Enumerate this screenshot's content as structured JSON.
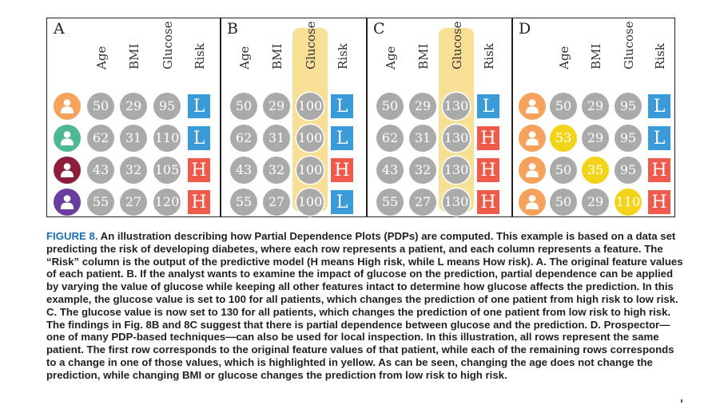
{
  "colors": {
    "gray_circle": "#aaaaaa",
    "yellow_highlight": "#f3d41c",
    "glucose_column_highlight": "#f8df96",
    "risk_low": "#3b9bd8",
    "risk_high": "#ef5a4a",
    "caption_label": "#1a6fb4"
  },
  "panels": [
    {
      "letter": "A",
      "headers": [
        "Age",
        "BMI",
        "Glucose",
        "Risk"
      ],
      "highlight_glucose_column": false,
      "rows": [
        {
          "avatar_color": "#f5a35c",
          "values": [
            "50",
            "29",
            "95"
          ],
          "risk": "L",
          "highlight": [
            false,
            false,
            false
          ]
        },
        {
          "avatar_color": "#4db896",
          "values": [
            "62",
            "31",
            "110"
          ],
          "risk": "L",
          "highlight": [
            false,
            false,
            false
          ]
        },
        {
          "avatar_color": "#8c1d3b",
          "values": [
            "43",
            "32",
            "105"
          ],
          "risk": "H",
          "highlight": [
            false,
            false,
            false
          ]
        },
        {
          "avatar_color": "#6a3e9e",
          "values": [
            "55",
            "27",
            "120"
          ],
          "risk": "H",
          "highlight": [
            false,
            false,
            false
          ]
        }
      ]
    },
    {
      "letter": "B",
      "headers": [
        "Age",
        "BMI",
        "Glucose",
        "Risk"
      ],
      "highlight_glucose_column": true,
      "rows": [
        {
          "values": [
            "50",
            "29",
            "100"
          ],
          "risk": "L",
          "highlight": [
            false,
            false,
            false
          ]
        },
        {
          "values": [
            "62",
            "31",
            "100"
          ],
          "risk": "L",
          "highlight": [
            false,
            false,
            false
          ]
        },
        {
          "values": [
            "43",
            "32",
            "100"
          ],
          "risk": "H",
          "highlight": [
            false,
            false,
            false
          ]
        },
        {
          "values": [
            "55",
            "27",
            "100"
          ],
          "risk": "L",
          "highlight": [
            false,
            false,
            false
          ]
        }
      ]
    },
    {
      "letter": "C",
      "headers": [
        "Age",
        "BMI",
        "Glucose",
        "Risk"
      ],
      "highlight_glucose_column": true,
      "rows": [
        {
          "values": [
            "50",
            "29",
            "130"
          ],
          "risk": "L",
          "highlight": [
            false,
            false,
            false
          ]
        },
        {
          "values": [
            "62",
            "31",
            "130"
          ],
          "risk": "H",
          "highlight": [
            false,
            false,
            false
          ]
        },
        {
          "values": [
            "43",
            "32",
            "130"
          ],
          "risk": "H",
          "highlight": [
            false,
            false,
            false
          ]
        },
        {
          "values": [
            "55",
            "27",
            "130"
          ],
          "risk": "H",
          "highlight": [
            false,
            false,
            false
          ]
        }
      ]
    },
    {
      "letter": "D",
      "headers": [
        "Age",
        "BMI",
        "Glucose",
        "Risk"
      ],
      "highlight_glucose_column": false,
      "rows": [
        {
          "avatar_color": "#f5a35c",
          "values": [
            "50",
            "29",
            "95"
          ],
          "risk": "L",
          "highlight": [
            false,
            false,
            false
          ]
        },
        {
          "avatar_color": "#f5a35c",
          "values": [
            "53",
            "29",
            "95"
          ],
          "risk": "L",
          "highlight": [
            true,
            false,
            false
          ]
        },
        {
          "avatar_color": "#f5a35c",
          "values": [
            "50",
            "35",
            "95"
          ],
          "risk": "H",
          "highlight": [
            false,
            true,
            false
          ]
        },
        {
          "avatar_color": "#f5a35c",
          "values": [
            "50",
            "29",
            "110"
          ],
          "risk": "H",
          "highlight": [
            false,
            false,
            true
          ]
        }
      ]
    }
  ],
  "caption": {
    "label": "FIGURE 8.",
    "text": "An illustration describing how Partial Dependence Plots (PDPs) are computed. This example is based on a data set predicting the risk of developing diabetes, where each row represents a patient, and each column represents a feature. The “Risk” column is the output of the predictive model (H means High risk, while L means How risk). A. The original feature values of each patient. B. If the analyst wants to examine the impact of glucose on the prediction, partial dependence can be applied by varying the value of glucose while keeping all other features intact to determine how glucose affects the prediction. In this example, the glucose value is set to 100 for all patients, which changes the prediction of one patient from high risk to low risk. C. The glucose value is now set to 130 for all patients, which changes the prediction of one patient from low risk to high risk. The findings in Fig. 8B and 8C suggest that there is partial dependence between glucose and the prediction. D. Prospector—one of many PDP-based techniques—can also be used for local inspection. In this illustration, all rows represent the same patient. The first row corresponds to the original feature values of that patient, while each of the remaining rows corresponds to a change in one of those values, which is highlighted in yellow. As can be seen, changing the age does not change the prediction, while changing BMI or glucose changes the prediction from low risk to high risk."
  }
}
